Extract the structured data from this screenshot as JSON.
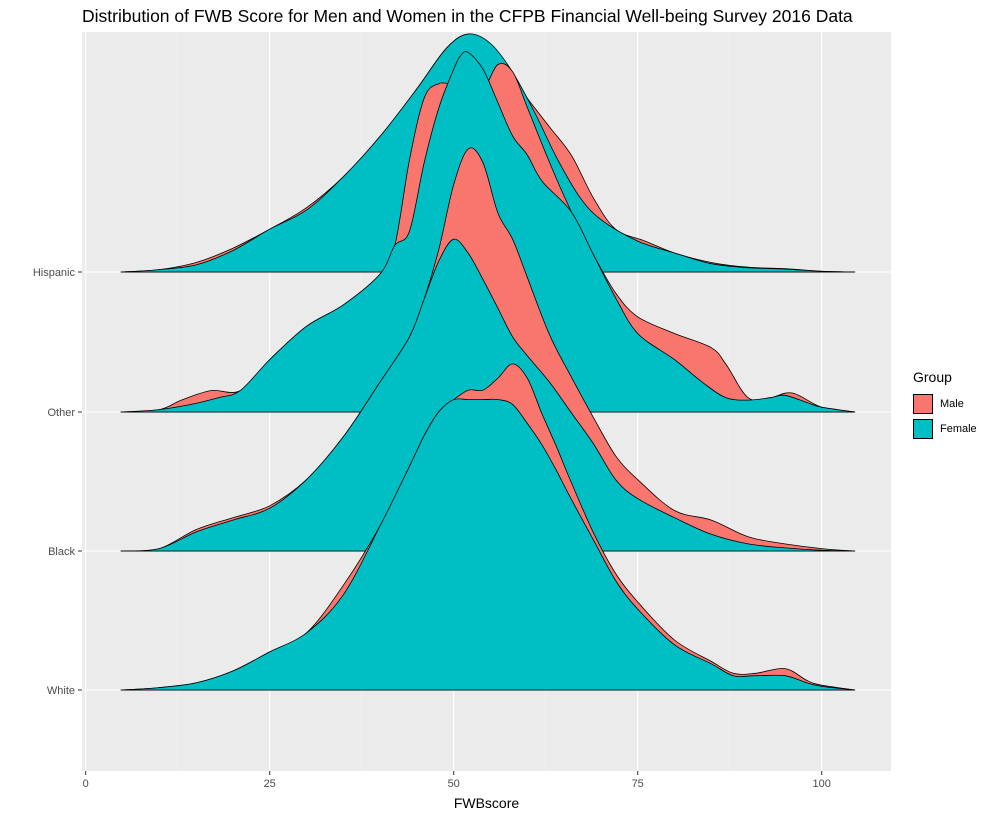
{
  "chart_data": {
    "type": "area",
    "subtype": "ridgeline density",
    "title": "Distribution of FWB Score for Men and Women in the CFPB Financial Well-being Survey 2016 Data",
    "xlabel": "FWBscore",
    "ylabel": "",
    "xlim": [
      -1,
      108
    ],
    "x_ticks": [
      0,
      25,
      50,
      75,
      100
    ],
    "categories": [
      "White",
      "Black",
      "Other",
      "Hispanic"
    ],
    "legend": {
      "title": "Group",
      "position": "right"
    },
    "grid": true,
    "series_colors": {
      "Male": "#F8766D",
      "Female": "#00BFC4"
    },
    "series": [
      {
        "category": "Hispanic",
        "name": "Male",
        "points": [
          [
            4.8,
            0
          ],
          [
            10,
            0.01
          ],
          [
            15,
            0.04
          ],
          [
            20,
            0.1
          ],
          [
            25,
            0.18
          ],
          [
            30,
            0.27
          ],
          [
            35,
            0.4
          ],
          [
            40,
            0.57
          ],
          [
            45,
            0.77
          ],
          [
            49,
            0.94
          ],
          [
            52,
            1.0
          ],
          [
            55,
            0.95
          ],
          [
            57,
            0.86
          ],
          [
            60,
            0.73
          ],
          [
            63,
            0.61
          ],
          [
            66,
            0.49
          ],
          [
            69,
            0.31
          ],
          [
            72,
            0.18
          ],
          [
            76,
            0.13
          ],
          [
            80,
            0.08
          ],
          [
            85,
            0.04
          ],
          [
            90,
            0.02
          ],
          [
            95,
            0.014
          ],
          [
            100,
            0.003
          ],
          [
            104.5,
            0
          ]
        ]
      },
      {
        "category": "Hispanic",
        "name": "Female",
        "points": [
          [
            4.8,
            0
          ],
          [
            10,
            0.01
          ],
          [
            15,
            0.03
          ],
          [
            20,
            0.09
          ],
          [
            25,
            0.18
          ],
          [
            30,
            0.26
          ],
          [
            35,
            0.4
          ],
          [
            40,
            0.57
          ],
          [
            45,
            0.77
          ],
          [
            49,
            0.94
          ],
          [
            52,
            1.0
          ],
          [
            55,
            0.96
          ],
          [
            58,
            0.84
          ],
          [
            61,
            0.67
          ],
          [
            64,
            0.48
          ],
          [
            67,
            0.32
          ],
          [
            70,
            0.22
          ],
          [
            75,
            0.13
          ],
          [
            80,
            0.08
          ],
          [
            85,
            0.035
          ],
          [
            90,
            0.018
          ],
          [
            95,
            0.012
          ],
          [
            100,
            0.003
          ],
          [
            104.5,
            0
          ]
        ]
      },
      {
        "category": "Other",
        "name": "Male",
        "points": [
          [
            4.8,
            0
          ],
          [
            10,
            0.01
          ],
          [
            13,
            0.05
          ],
          [
            17,
            0.09
          ],
          [
            21,
            0.09
          ],
          [
            25,
            0.22
          ],
          [
            30,
            0.36
          ],
          [
            35,
            0.45
          ],
          [
            40,
            0.58
          ],
          [
            42,
            0.7
          ],
          [
            44,
            1.06
          ],
          [
            46,
            1.32
          ],
          [
            48,
            1.38
          ],
          [
            50,
            1.38
          ],
          [
            52,
            1.42
          ],
          [
            54,
            1.36
          ],
          [
            56,
            1.46
          ],
          [
            58,
            1.43
          ],
          [
            60,
            1.28
          ],
          [
            63,
            1.05
          ],
          [
            66,
            0.84
          ],
          [
            69,
            0.66
          ],
          [
            72,
            0.5
          ],
          [
            75,
            0.4
          ],
          [
            80,
            0.33
          ],
          [
            85,
            0.27
          ],
          [
            87,
            0.2
          ],
          [
            90,
            0.06
          ],
          [
            93,
            0.06
          ],
          [
            96,
            0.08
          ],
          [
            100,
            0.02
          ],
          [
            104.5,
            0
          ]
        ]
      },
      {
        "category": "Other",
        "name": "Female",
        "points": [
          [
            4.8,
            0
          ],
          [
            10,
            0.01
          ],
          [
            14,
            0.03
          ],
          [
            18,
            0.06
          ],
          [
            21,
            0.09
          ],
          [
            25,
            0.22
          ],
          [
            30,
            0.36
          ],
          [
            35,
            0.45
          ],
          [
            40,
            0.58
          ],
          [
            42,
            0.7
          ],
          [
            44,
            0.76
          ],
          [
            46,
            1.05
          ],
          [
            48,
            1.28
          ],
          [
            50,
            1.44
          ],
          [
            51,
            1.5
          ],
          [
            52,
            1.51
          ],
          [
            54,
            1.44
          ],
          [
            56,
            1.3
          ],
          [
            58,
            1.16
          ],
          [
            60,
            1.08
          ],
          [
            62,
            0.97
          ],
          [
            66,
            0.84
          ],
          [
            69,
            0.66
          ],
          [
            72,
            0.48
          ],
          [
            75,
            0.33
          ],
          [
            80,
            0.22
          ],
          [
            84,
            0.12
          ],
          [
            87,
            0.06
          ],
          [
            90,
            0.05
          ],
          [
            93,
            0.06
          ],
          [
            95,
            0.07
          ],
          [
            98,
            0.04
          ],
          [
            100,
            0.02
          ],
          [
            104.5,
            0
          ]
        ]
      },
      {
        "category": "Black",
        "name": "Male",
        "points": [
          [
            4.8,
            0
          ],
          [
            10,
            0.01
          ],
          [
            15,
            0.09
          ],
          [
            20,
            0.14
          ],
          [
            25,
            0.19
          ],
          [
            30,
            0.3
          ],
          [
            35,
            0.48
          ],
          [
            40,
            0.71
          ],
          [
            44,
            0.9
          ],
          [
            46,
            1.06
          ],
          [
            48,
            1.27
          ],
          [
            50,
            1.54
          ],
          [
            52,
            1.69
          ],
          [
            54,
            1.63
          ],
          [
            56,
            1.42
          ],
          [
            58,
            1.31
          ],
          [
            60,
            1.15
          ],
          [
            63,
            0.91
          ],
          [
            66,
            0.73
          ],
          [
            69,
            0.56
          ],
          [
            72,
            0.4
          ],
          [
            75,
            0.3
          ],
          [
            80,
            0.17
          ],
          [
            85,
            0.13
          ],
          [
            90,
            0.06
          ],
          [
            95,
            0.03
          ],
          [
            100,
            0.01
          ],
          [
            104.5,
            0
          ]
        ]
      },
      {
        "category": "Black",
        "name": "Female",
        "points": [
          [
            4.8,
            0
          ],
          [
            10,
            0.01
          ],
          [
            15,
            0.08
          ],
          [
            20,
            0.13
          ],
          [
            25,
            0.18
          ],
          [
            30,
            0.3
          ],
          [
            35,
            0.48
          ],
          [
            40,
            0.71
          ],
          [
            44,
            0.9
          ],
          [
            46,
            1.06
          ],
          [
            48,
            1.22
          ],
          [
            50,
            1.31
          ],
          [
            52,
            1.25
          ],
          [
            54,
            1.14
          ],
          [
            56,
            1.02
          ],
          [
            58,
            0.9
          ],
          [
            60,
            0.82
          ],
          [
            63,
            0.71
          ],
          [
            66,
            0.58
          ],
          [
            69,
            0.45
          ],
          [
            72,
            0.3
          ],
          [
            75,
            0.22
          ],
          [
            80,
            0.14
          ],
          [
            85,
            0.07
          ],
          [
            90,
            0.03
          ],
          [
            95,
            0.013
          ],
          [
            100,
            0.003
          ],
          [
            104.5,
            0
          ]
        ]
      },
      {
        "category": "White",
        "name": "Male",
        "points": [
          [
            4.8,
            0
          ],
          [
            10,
            0.01
          ],
          [
            15,
            0.03
          ],
          [
            20,
            0.08
          ],
          [
            25,
            0.16
          ],
          [
            30,
            0.24
          ],
          [
            35,
            0.44
          ],
          [
            40,
            0.69
          ],
          [
            44,
            0.94
          ],
          [
            46,
            1.07
          ],
          [
            48,
            1.17
          ],
          [
            50,
            1.22
          ],
          [
            52,
            1.26
          ],
          [
            54,
            1.26
          ],
          [
            56,
            1.31
          ],
          [
            58,
            1.37
          ],
          [
            60,
            1.31
          ],
          [
            62,
            1.16
          ],
          [
            64,
            1.02
          ],
          [
            66,
            0.87
          ],
          [
            69,
            0.66
          ],
          [
            72,
            0.49
          ],
          [
            75,
            0.37
          ],
          [
            80,
            0.21
          ],
          [
            85,
            0.12
          ],
          [
            88,
            0.07
          ],
          [
            91,
            0.07
          ],
          [
            95,
            0.09
          ],
          [
            98,
            0.04
          ],
          [
            100,
            0.02
          ],
          [
            104.5,
            0
          ]
        ]
      },
      {
        "category": "White",
        "name": "Female",
        "points": [
          [
            4.8,
            0
          ],
          [
            10,
            0.01
          ],
          [
            15,
            0.03
          ],
          [
            20,
            0.08
          ],
          [
            25,
            0.16
          ],
          [
            30,
            0.24
          ],
          [
            35,
            0.4
          ],
          [
            40,
            0.69
          ],
          [
            44,
            0.94
          ],
          [
            46,
            1.07
          ],
          [
            48,
            1.17
          ],
          [
            50,
            1.22
          ],
          [
            52,
            1.22
          ],
          [
            54,
            1.22
          ],
          [
            56,
            1.22
          ],
          [
            58,
            1.2
          ],
          [
            60,
            1.12
          ],
          [
            62,
            1.03
          ],
          [
            64,
            0.92
          ],
          [
            66,
            0.8
          ],
          [
            69,
            0.63
          ],
          [
            72,
            0.46
          ],
          [
            75,
            0.34
          ],
          [
            80,
            0.19
          ],
          [
            85,
            0.11
          ],
          [
            88,
            0.06
          ],
          [
            91,
            0.06
          ],
          [
            95,
            0.06
          ],
          [
            98,
            0.03
          ],
          [
            100,
            0.015
          ],
          [
            104.5,
            0
          ]
        ]
      }
    ]
  }
}
